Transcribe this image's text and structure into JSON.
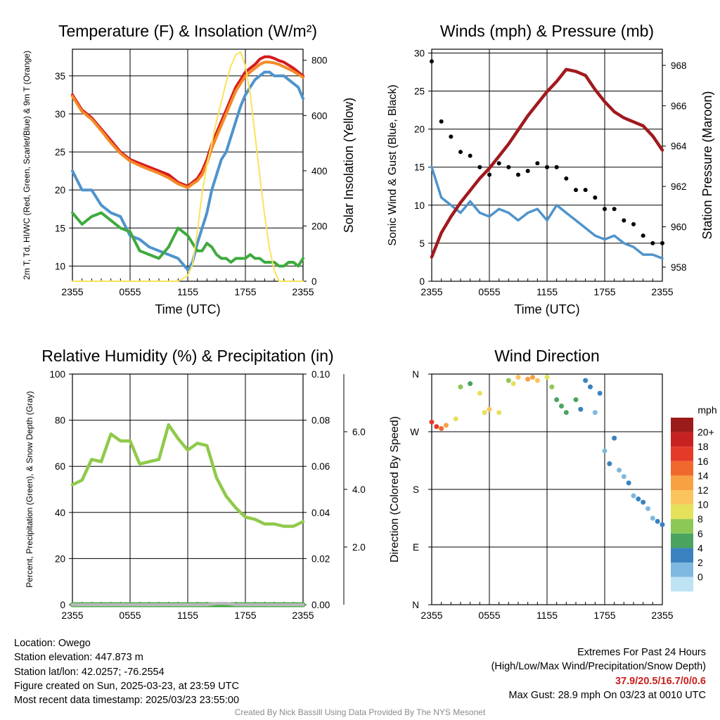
{
  "chart_data": [
    {
      "type": "line",
      "title": "Temperature (F) & Insolation (W/m²)",
      "xlabel": "Time (UTC)",
      "ylabel": "2m T, Td, HI/WC (Red, Green, Scarlet/Blue) & 9m T (Orange)",
      "y2label": "Solar Insolation (Yellow)",
      "ylim": [
        8,
        38.5
      ],
      "y2lim": [
        0,
        840
      ],
      "yticks": [
        "10",
        "15",
        "20",
        "25",
        "30",
        "35"
      ],
      "y2ticks": [
        "0",
        "200",
        "400",
        "600",
        "800"
      ],
      "xticks": [
        "2355",
        "0555",
        "1155",
        "1755",
        "2355"
      ],
      "grid": true,
      "x": [
        0,
        1,
        2,
        3,
        4,
        5,
        6,
        7,
        8,
        9,
        10,
        11,
        12,
        12.5,
        13,
        13.5,
        14,
        14.5,
        15,
        15.5,
        16,
        16.5,
        17,
        17.5,
        18,
        18.5,
        19,
        19.5,
        20,
        20.5,
        21,
        21.5,
        22,
        22.5,
        23,
        23.5,
        24
      ],
      "series": [
        {
          "key": "temp",
          "color": "#d7191c",
          "axis": "left",
          "values": [
            32.5,
            30.5,
            29.5,
            28,
            26.5,
            25,
            24,
            23.5,
            23,
            22.5,
            22,
            21,
            20.5,
            21,
            21.5,
            22.5,
            24,
            26,
            27.5,
            29,
            30.5,
            32,
            33.5,
            34.5,
            35.5,
            36,
            36.5,
            37.2,
            37.5,
            37.5,
            37.3,
            37,
            36.8,
            36.4,
            36,
            35.5,
            35
          ]
        },
        {
          "key": "temp9m",
          "color": "#f48a28",
          "axis": "left",
          "values": [
            32.3,
            30.3,
            29.3,
            27.8,
            26.2,
            24.8,
            23.8,
            23.2,
            22.7,
            22.2,
            21.6,
            20.8,
            20.3,
            20.8,
            21.2,
            22,
            23.5,
            25.5,
            27,
            28.5,
            30,
            31.5,
            33,
            34,
            35,
            35.5,
            36,
            36.5,
            36.8,
            36.8,
            36.7,
            36.5,
            36.2,
            35.9,
            35.6,
            35.2,
            34.8
          ]
        },
        {
          "key": "windchill",
          "color": "#4f94cc",
          "axis": "left",
          "values": [
            22.5,
            20,
            20,
            18,
            17,
            16.5,
            14,
            13.5,
            12.5,
            12,
            11.5,
            11,
            9.5,
            10.5,
            13,
            15,
            17,
            20,
            22,
            24,
            25,
            27,
            29,
            31,
            32.5,
            33.5,
            34.5,
            35,
            35.5,
            35.5,
            35,
            35,
            35,
            34.5,
            34,
            33.5,
            32
          ]
        },
        {
          "key": "dewpoint",
          "color": "#3eaa3e",
          "axis": "left",
          "values": [
            17,
            15.5,
            16.5,
            17,
            16,
            15,
            14.5,
            12,
            11.5,
            11,
            12.5,
            15,
            14,
            13,
            12,
            12,
            13,
            12.5,
            11.5,
            11,
            11,
            10.5,
            11,
            11,
            11,
            11.5,
            11,
            11,
            10.5,
            10.5,
            10.5,
            10,
            10,
            10.5,
            10.5,
            10,
            11
          ]
        },
        {
          "key": "solar",
          "color": "#fae35a",
          "axis": "right",
          "values": [
            0,
            0,
            0,
            0,
            0,
            0,
            0,
            0,
            0,
            0,
            0,
            0,
            20,
            60,
            180,
            320,
            420,
            500,
            580,
            650,
            720,
            780,
            820,
            830,
            780,
            680,
            530,
            380,
            240,
            120,
            40,
            0,
            0,
            0,
            0,
            0,
            0
          ]
        }
      ]
    },
    {
      "type": "scatter",
      "title": "Winds (mph) & Pressure (mb)",
      "xlabel": "Time (UTC)",
      "ylabel": "Sonic Wind & Gust (Blue, Black)",
      "y2label": "Station Pressure (Maroon)",
      "ylim": [
        0,
        30.5
      ],
      "y2lim": [
        957.3,
        968.8
      ],
      "yticks": [
        "0",
        "5",
        "10",
        "15",
        "20",
        "25",
        "30"
      ],
      "y2ticks": [
        "958",
        "960",
        "962",
        "964",
        "966",
        "968"
      ],
      "xticks": [
        "2355",
        "0555",
        "1155",
        "1755",
        "2355"
      ],
      "grid": true,
      "x": [
        0,
        1,
        2,
        3,
        4,
        5,
        6,
        7,
        8,
        9,
        10,
        11,
        12,
        13,
        14,
        15,
        16,
        17,
        18,
        19,
        20,
        21,
        22,
        23,
        24
      ],
      "series": [
        {
          "key": "wind",
          "color": "#4f94cc",
          "axis": "left",
          "values": [
            15,
            11,
            10,
            9,
            10.5,
            9,
            8.5,
            9.5,
            9,
            8,
            9,
            9.5,
            8,
            10,
            9,
            8,
            7,
            6,
            5.5,
            6,
            5,
            4.5,
            3.5,
            3.5,
            3
          ]
        },
        {
          "key": "gust",
          "color": "#000000",
          "axis": "left",
          "values": [
            28.9,
            21,
            19,
            17,
            16.5,
            15,
            14,
            15.5,
            15,
            14,
            14.5,
            15.5,
            15,
            15,
            13.5,
            12,
            12,
            11,
            9.5,
            9.5,
            8,
            7.5,
            6,
            5,
            5
          ]
        },
        {
          "key": "pressure",
          "color": "#a01a1e",
          "axis": "right",
          "values": [
            958.5,
            959.7,
            960.5,
            961.2,
            961.8,
            962.4,
            962.9,
            963.5,
            964.1,
            964.8,
            965.5,
            966.1,
            966.7,
            967.2,
            967.8,
            967.7,
            967.5,
            966.8,
            966.2,
            965.7,
            965.4,
            965.2,
            965,
            964.5,
            963.8
          ]
        }
      ]
    },
    {
      "type": "line",
      "title": "Relative Humidity (%) & Precipitation (in)",
      "xlabel": "",
      "ylabel": "Percent, Precipitation (Green), & Snow Depth (Gray)",
      "ylim": [
        0,
        100
      ],
      "y2lim": [
        0,
        0.1
      ],
      "yticks": [
        "0",
        "20",
        "40",
        "60",
        "80",
        "100"
      ],
      "y2ticks": [
        "0.00",
        "0.02",
        "0.04",
        "0.06",
        "0.08",
        "0.10"
      ],
      "y3ticks": [
        "2.0",
        "4.0",
        "6.0"
      ],
      "xticks": [
        "2355",
        "0555",
        "1155",
        "1755",
        "2355"
      ],
      "grid": true,
      "x": [
        0,
        1,
        2,
        3,
        4,
        5,
        6,
        7,
        8,
        9,
        10,
        11,
        12,
        13,
        14,
        15,
        16,
        17,
        18,
        19,
        20,
        21,
        22,
        23,
        24
      ],
      "series": [
        {
          "key": "rh",
          "color": "#8fca4a",
          "axis": "left",
          "values": [
            52,
            54,
            63,
            62,
            74,
            71,
            71,
            61,
            62,
            63,
            78,
            72,
            67,
            70,
            69,
            55,
            47,
            42,
            38,
            37,
            35,
            35,
            34,
            34,
            36
          ]
        },
        {
          "key": "precip",
          "color": "#3eaa3e",
          "axis": "right",
          "values": [
            0,
            0,
            0,
            0,
            0,
            0,
            0,
            0,
            0,
            0,
            0,
            0,
            0,
            0,
            0,
            0,
            0,
            0,
            0,
            0,
            0,
            0,
            0,
            0,
            0
          ]
        },
        {
          "key": "snow",
          "color": "#b8b8b8",
          "axis": "left",
          "values": [
            0,
            0,
            0,
            0,
            0,
            0,
            0,
            0,
            0,
            0,
            0,
            0,
            0,
            0,
            0,
            0.5,
            0.5,
            0,
            0,
            0,
            0,
            0,
            0,
            0,
            0
          ]
        }
      ]
    },
    {
      "type": "scatter",
      "title": "Wind Direction",
      "xlabel": "",
      "ylabel": "Direction (Colored By Speed)",
      "yticks": [
        "N",
        "E",
        "S",
        "W",
        "N"
      ],
      "xticks": [
        "2355",
        "0555",
        "1155",
        "1755",
        "2355"
      ],
      "grid": true,
      "legend_title": "mph",
      "legend_labels": [
        "20+",
        "18",
        "16",
        "14",
        "12",
        "10",
        "8",
        "6",
        "4",
        "2",
        "0"
      ],
      "legend_colors": [
        "#9b1b1b",
        "#c62222",
        "#e43a28",
        "#f0682d",
        "#f8a142",
        "#fcc45c",
        "#e5e15a",
        "#8cc856",
        "#4aa35e",
        "#3a82bf",
        "#7fb8e0",
        "#bde3f5"
      ],
      "x": [
        0,
        0.5,
        1,
        1.5,
        2.5,
        3,
        4,
        5,
        5.5,
        6,
        7,
        8,
        8.5,
        9,
        10,
        10.5,
        11,
        12,
        12.5,
        13,
        13.5,
        14,
        15,
        15.5,
        16,
        16.5,
        17,
        17.5,
        18,
        18.5,
        19,
        19.5,
        20,
        20.5,
        21,
        21.5,
        22,
        22.5,
        23,
        23.5,
        24
      ],
      "values": [
        285,
        278,
        275,
        280,
        290,
        340,
        345,
        330,
        300,
        305,
        300,
        350,
        345,
        355,
        352,
        355,
        350,
        355,
        340,
        320,
        310,
        300,
        320,
        305,
        350,
        340,
        300,
        330,
        240,
        220,
        260,
        210,
        200,
        190,
        170,
        165,
        160,
        150,
        135,
        130,
        125
      ],
      "speeds": [
        18,
        17,
        15,
        14,
        10,
        8,
        6,
        9,
        10,
        11,
        9,
        8,
        10,
        11,
        13,
        14,
        12,
        9,
        7,
        6,
        5,
        6,
        5,
        4,
        4,
        3,
        2,
        3,
        2,
        3,
        4,
        2,
        2,
        3,
        2,
        4,
        3,
        2,
        2,
        3,
        4
      ]
    }
  ],
  "info_left": [
    "Location: Owego",
    "Station elevation: 447.873 m",
    "Station lat/lon: 42.0257; -76.2554",
    "Figure created on Sun, 2025-03-23, at 23:59 UTC",
    "Most recent data timestamp: 2025/03/23 23:55:00"
  ],
  "extremes": {
    "title": "Extremes For Past 24 Hours",
    "subtitle": "(High/Low/Max Wind/Precipitation/Snow Depth)",
    "values": "37.9/20.5/16.7/0/0.6",
    "max_gust": "Max Gust: 28.9 mph On 03/23 at 0010 UTC"
  },
  "credit": "Created By Nick Bassill Using Data Provided By The NYS Mesonet"
}
